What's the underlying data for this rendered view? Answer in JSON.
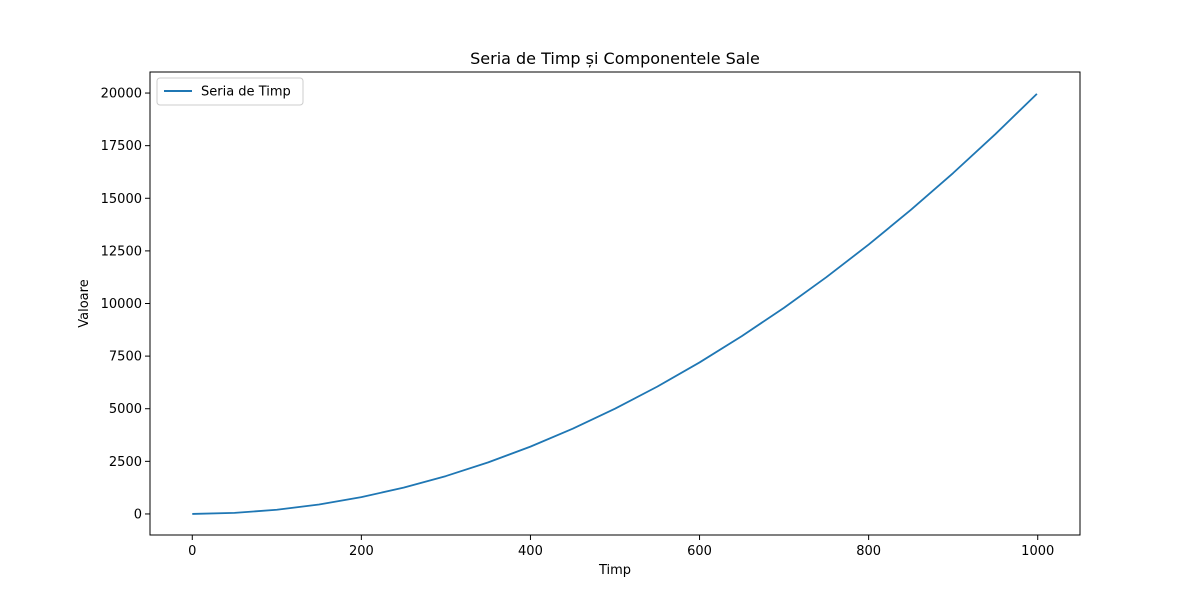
{
  "chart_data": {
    "type": "line",
    "title": "Seria de Timp și Componentele Sale",
    "xlabel": "Timp",
    "ylabel": "Valoare",
    "xlim": [
      -50,
      1050
    ],
    "ylim": [
      -1000,
      21000
    ],
    "xticks": [
      0,
      200,
      400,
      600,
      800,
      1000
    ],
    "yticks": [
      0,
      2500,
      5000,
      7500,
      10000,
      12500,
      15000,
      17500,
      20000
    ],
    "grid": false,
    "legend_position": "top-left",
    "series": [
      {
        "name": "Seria de Timp",
        "color": "#1f77b4",
        "x": [
          0,
          50,
          100,
          150,
          200,
          250,
          300,
          350,
          400,
          450,
          500,
          550,
          600,
          650,
          700,
          750,
          800,
          850,
          900,
          950,
          999
        ],
        "y": [
          0,
          50,
          200,
          450,
          800,
          1250,
          1800,
          2450,
          3200,
          4050,
          5000,
          6050,
          7200,
          8450,
          9800,
          11250,
          12800,
          14450,
          16200,
          18050,
          19960
        ]
      }
    ]
  }
}
